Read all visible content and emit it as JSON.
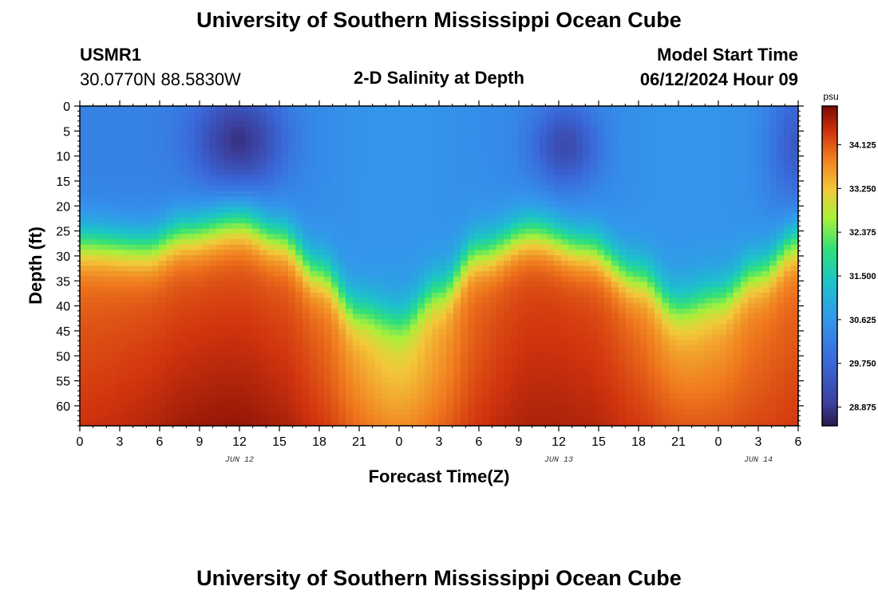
{
  "header": {
    "title": "University of Southern Mississippi Ocean Cube",
    "station_id": "USMR1",
    "coords": "30.0770N  88.5830W",
    "plot_title": "2-D Salinity at Depth",
    "model_label": "Model Start Time",
    "model_time": "06/12/2024 Hour 09"
  },
  "footer": {
    "title": "University of Southern Mississippi Ocean Cube"
  },
  "chart_data": {
    "type": "heatmap",
    "title": "2-D Salinity at Depth",
    "xlabel": "Forecast Time(Z)",
    "ylabel": "Depth (ft)",
    "x_ticks": [
      "0",
      "3",
      "6",
      "9",
      "12",
      "15",
      "18",
      "21",
      "0",
      "3",
      "6",
      "9",
      "12",
      "15",
      "18",
      "21",
      "0",
      "3",
      "6"
    ],
    "x_range_hours": [
      0,
      54
    ],
    "date_labels": [
      {
        "text": "JUN 12",
        "hour": 12
      },
      {
        "text": "JUN 13",
        "hour": 36
      },
      {
        "text": "JUN 14",
        "hour": 51
      }
    ],
    "y_ticks": [
      "0",
      "5",
      "10",
      "15",
      "20",
      "25",
      "30",
      "35",
      "40",
      "45",
      "50",
      "55",
      "60"
    ],
    "y_range_ft": [
      0,
      64
    ],
    "colorbar": {
      "unit": "psu",
      "range": [
        28.5,
        34.9
      ],
      "ticks": [
        "34.125",
        "33.250",
        "32.375",
        "31.500",
        "30.625",
        "29.750",
        "28.875"
      ]
    },
    "halocline_depth_ft": [
      {
        "hour": 0,
        "depth": 27
      },
      {
        "hour": 5,
        "depth": 28
      },
      {
        "hour": 8,
        "depth": 25
      },
      {
        "hour": 12,
        "depth": 23
      },
      {
        "hour": 15,
        "depth": 26
      },
      {
        "hour": 18,
        "depth": 33
      },
      {
        "hour": 21,
        "depth": 41
      },
      {
        "hour": 24,
        "depth": 43
      },
      {
        "hour": 27,
        "depth": 37
      },
      {
        "hour": 30,
        "depth": 29
      },
      {
        "hour": 34,
        "depth": 25
      },
      {
        "hour": 38,
        "depth": 28
      },
      {
        "hour": 42,
        "depth": 34
      },
      {
        "hour": 45,
        "depth": 40
      },
      {
        "hour": 48,
        "depth": 38
      },
      {
        "hour": 51,
        "depth": 33
      },
      {
        "hour": 54,
        "depth": 27
      }
    ],
    "surface_minimum_psu": 28.9,
    "bottom_maximum_psu": 34.8
  }
}
